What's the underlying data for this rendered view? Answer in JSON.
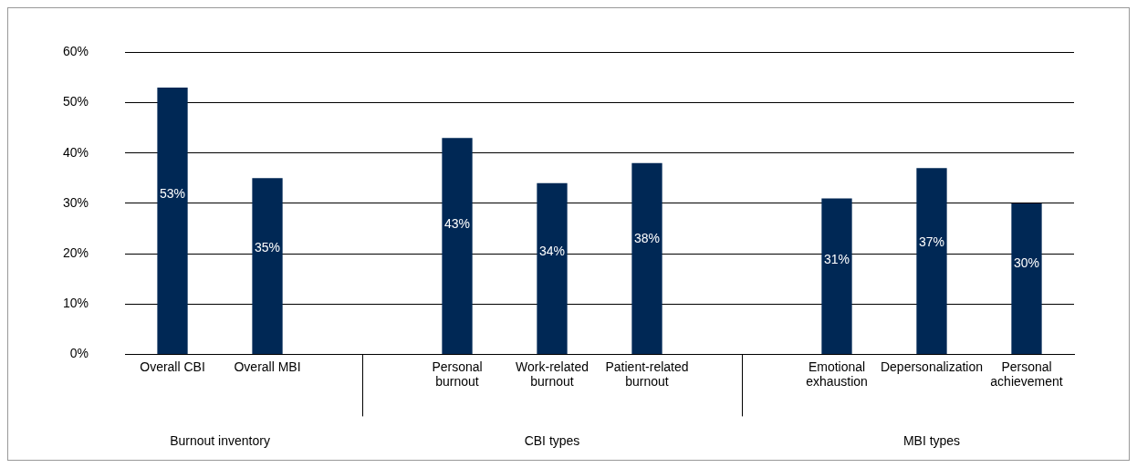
{
  "chart_data": {
    "type": "bar",
    "categories": [
      "Overall CBI",
      "Overall MBI",
      null,
      "Personal burnout",
      "Work-related burnout",
      "Patient-related burnout",
      null,
      "Emotional exhaustion",
      "Depersonalization",
      "Personal achievement"
    ],
    "values": [
      53,
      35,
      null,
      43,
      34,
      38,
      null,
      31,
      37,
      30
    ],
    "color": "#002855",
    "ylim": [
      0,
      60
    ],
    "yticks": [
      {
        "value": 0,
        "label": "0%"
      },
      {
        "value": 10,
        "label": "10%"
      },
      {
        "value": 20,
        "label": "20%"
      },
      {
        "value": 30,
        "label": "30%"
      },
      {
        "value": 40,
        "label": "40%"
      },
      {
        "value": 50,
        "label": "50%"
      },
      {
        "value": 60,
        "label": "60%"
      }
    ],
    "value_labels": [
      "53%",
      "35%",
      null,
      "43%",
      "34%",
      "38%",
      null,
      "31%",
      "37%",
      "30%"
    ],
    "annotations": [
      "Burnout inventory",
      "CBI types",
      "MBI types"
    ],
    "grid": "y",
    "legend": false
  }
}
